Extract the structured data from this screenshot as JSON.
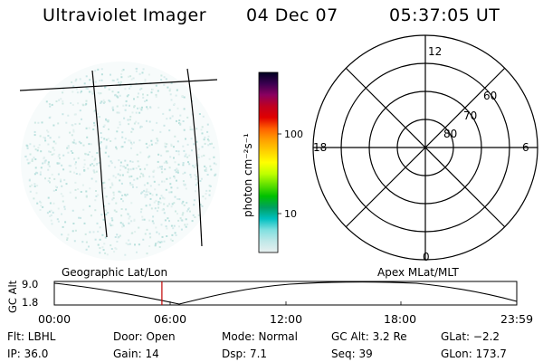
{
  "header": {
    "title": "Ultraviolet Imager",
    "date": "04 Dec 07",
    "time": "05:37:05 UT"
  },
  "colorbar": {
    "unit": "photon cm⁻²s⁻¹",
    "tick_labels": [
      "100",
      "10"
    ],
    "colors": [
      "#000020",
      "#3a0050",
      "#8a0060",
      "#c00020",
      "#e00000",
      "#ff6000",
      "#ffa000",
      "#ffd000",
      "#ffff00",
      "#c0ff00",
      "#60e000",
      "#00c000",
      "#00a060",
      "#00c0c0",
      "#80e0e0",
      "#c0e8e8",
      "#e8f0f0"
    ]
  },
  "polar_plot": {
    "mlat_labels": [
      "80",
      "70",
      "60"
    ],
    "mlt_labels": [
      "12",
      "6",
      "0",
      "18"
    ]
  },
  "timeline": {
    "left_axis_label": "GC Alt",
    "y_max": "9.0",
    "y_min": "1.8",
    "left_title": "Geographic Lat/Lon",
    "right_title": "Apex MLat/MLT",
    "time_ticks": [
      "00:00",
      "06:00",
      "12:00",
      "18:00",
      "23:59"
    ],
    "current_time_fraction": 0.2327,
    "marker_color": "#c00000"
  },
  "info": {
    "flt": "Flt: LBHL",
    "door": "Door: Open",
    "mode": "Mode: Normal",
    "gc_alt": "GC Alt: 3.2 Re",
    "glat": "GLat:  −2.2",
    "ip": "IP: 36.0",
    "gain": "Gain: 14",
    "dsp": "Dsp:     7.1",
    "seq": "Seq: 39",
    "glon": "GLon: 173.7"
  }
}
